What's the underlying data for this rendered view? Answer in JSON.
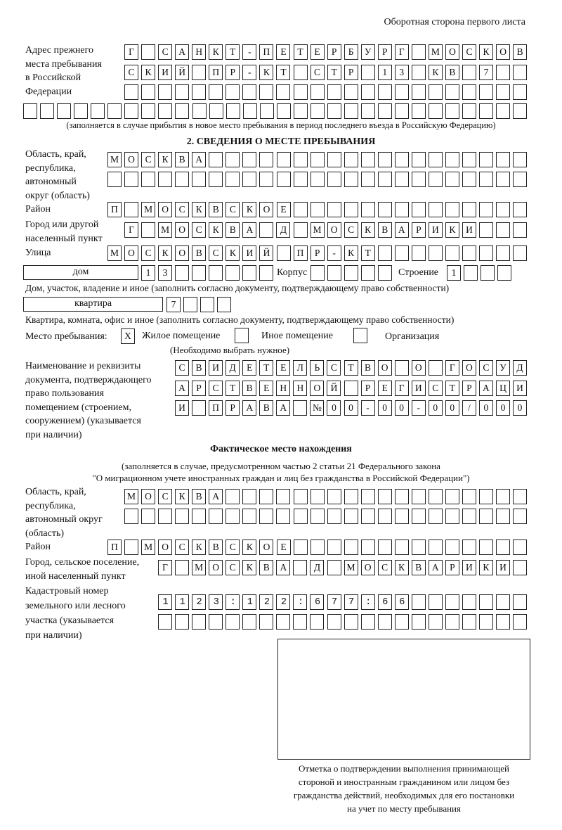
{
  "header": {
    "title": "Оборотная сторона первого листа"
  },
  "previous_address": {
    "label": [
      "Адрес прежнего",
      "места пребывания",
      "в Российской",
      "Федерации"
    ],
    "row1": "Г САНКТ-ПЕТЕРБУРГ МОСКОВ",
    "row2": "СКИЙ ПР-КТ СТР 13 КВ 7  ",
    "row3": "                        ",
    "row4": "                              ",
    "note": "(заполняется в случае прибытия в новое место пребывания в период последнего въезда в Российскую Федерацию)"
  },
  "section2": {
    "title": "2. СВЕДЕНИЯ О МЕСТЕ ПРЕБЫВАНИЯ",
    "region": {
      "label": [
        "Область, край,",
        "республика,",
        "автономный",
        "округ (область)"
      ],
      "row1": "МОСКВА                   ",
      "row2": "                         "
    },
    "district": {
      "label": "Район",
      "row": "П МОСКВСКОЕ              "
    },
    "city": {
      "label": [
        "Город или другой",
        "населенный пункт"
      ],
      "row": "Г МОСКВА Д МОСКВАРИКИ   "
    },
    "street": {
      "label": "Улица",
      "row": "МОСКОВСКИЙ ПР-КТ         "
    },
    "house": {
      "type": "дом",
      "number": "13      ",
      "korpus_label": "Корпус",
      "korpus": "     ",
      "building_label": "Строение",
      "building": "1   ",
      "caption": "Дом, участок, владение и иное (заполнить согласно документу, подтверждающему право собственности)"
    },
    "apartment": {
      "type": "квартира",
      "number": "7   ",
      "caption": "Квартира, комната, офис и иное (заполнить согласно документу, подтверждающему право собственности)"
    },
    "place": {
      "label": "Место пребывания:",
      "options": [
        {
          "label": "Жилое помещение",
          "mark": "X"
        },
        {
          "label": "Иное помещение",
          "mark": ""
        },
        {
          "label": "Организация",
          "mark": ""
        }
      ],
      "hint": "(Необходимо выбрать нужное)"
    },
    "document": {
      "label": [
        "Наименование и реквизиты",
        "документа, подтверждающего",
        "право пользования",
        "помещением (строением,",
        "сооружением) (указывается",
        "при наличии)"
      ],
      "row1": "СВИДЕТЕЛЬСТВО О ГОСУД",
      "row2": "АРСТВЕННОЙ РЕГИСТРАЦИ",
      "row3": "И ПРАВА №00-00-00/000"
    }
  },
  "actual": {
    "title": "Фактическое место нахождения",
    "note1": "(заполняется в случае, предусмотренном частью 2 статьи 21 Федерального закона",
    "note2": "\"О миграционном учете иностранных граждан и лиц без гражданства в Российской Федерации\")",
    "region": {
      "label": [
        "Область, край,",
        "республика,",
        "автономный округ",
        "(область)"
      ],
      "row1": "МОСКВА                  ",
      "row2": "                        "
    },
    "district": {
      "label": "Район",
      "row": "П МОСКВСКОЕ              "
    },
    "city": {
      "label": [
        "Город, сельское поселение,",
        "иной населенный пункт"
      ],
      "row": "Г МОСКВА Д МОСКВАРИКИ "
    },
    "cadastral": {
      "label": [
        "Кадастровый номер",
        "земельного или лесного",
        "участка (указывается",
        "при наличии)"
      ],
      "row1": "1123:122:677:66       ",
      "row2": "                      "
    }
  },
  "stamp": {
    "caption": [
      "Отметка о подтверждении выполнения принимающей",
      "стороной и иностранным гражданином или лицом без",
      "гражданства действий, необходимых для его постановки",
      "на учет по месту пребывания"
    ]
  }
}
